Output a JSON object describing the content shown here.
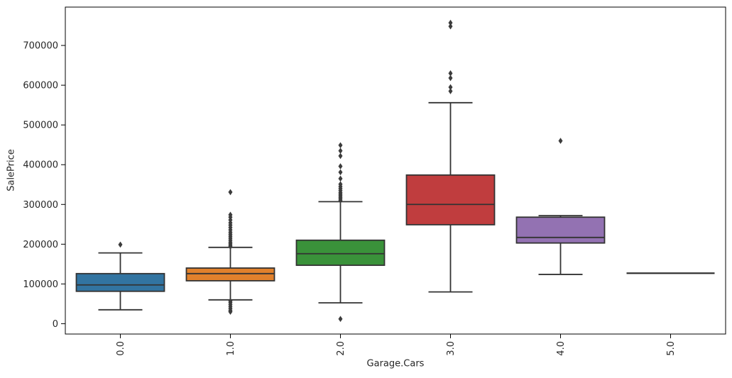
{
  "chart_data": {
    "type": "boxplot",
    "title": "",
    "xlabel": "Garage.Cars",
    "ylabel": "SalePrice",
    "categories": [
      "0.0",
      "1.0",
      "2.0",
      "3.0",
      "4.0",
      "5.0"
    ],
    "ylim": [
      -26000,
      796500
    ],
    "yticks": [
      0,
      100000,
      200000,
      300000,
      400000,
      500000,
      600000,
      700000
    ],
    "ytick_labels": [
      "0",
      "100000",
      "200000",
      "300000",
      "400000",
      "500000",
      "600000",
      "700000"
    ],
    "grid": false,
    "legend": "none",
    "frame_color": "#000000",
    "box_edge_color": "#333333",
    "flier_color": "#3c3c3c",
    "tick_text_color": "#262626",
    "series": [
      {
        "category": "0.0",
        "color": "#3274a1",
        "whisker_low": 35000,
        "q1": 81500,
        "median": 97500,
        "q3": 126000,
        "whisker_high": 178000,
        "outliers": [
          199000
        ]
      },
      {
        "category": "1.0",
        "color": "#e1812c",
        "whisker_low": 60000,
        "q1": 108000,
        "median": 126000,
        "q3": 140000,
        "whisker_high": 192000,
        "outliers": [
          331000,
          274000,
          268000,
          261000,
          254000,
          248000,
          242000,
          236000,
          230000,
          225000,
          220000,
          215000,
          210000,
          205000,
          201000,
          197000,
          194000,
          57000,
          53000,
          48000,
          43000,
          38000,
          33000,
          30000
        ]
      },
      {
        "category": "2.0",
        "color": "#3a923a",
        "whisker_low": 52500,
        "q1": 147000,
        "median": 176000,
        "q3": 210000,
        "whisker_high": 307000,
        "outliers": [
          449000,
          435000,
          422000,
          396000,
          381000,
          365000,
          351000,
          345000,
          340000,
          335000,
          330000,
          326000,
          322000,
          318000,
          314000,
          310000,
          12000
        ]
      },
      {
        "category": "3.0",
        "color": "#c03d3e",
        "whisker_low": 80000,
        "q1": 249000,
        "median": 300000,
        "q3": 374000,
        "whisker_high": 556000,
        "outliers": [
          757000,
          748000,
          630000,
          618000,
          595000,
          585000
        ]
      },
      {
        "category": "4.0",
        "color": "#9372b2",
        "whisker_low": 124000,
        "q1": 203000,
        "median": 217000,
        "q3": 268000,
        "whisker_high": 272000,
        "outliers": [
          460000
        ]
      },
      {
        "category": "5.0",
        "color": "#845b53",
        "whisker_low": 127000,
        "q1": 127000,
        "median": 127000,
        "q3": 127000,
        "whisker_high": 127000,
        "outliers": []
      }
    ]
  }
}
